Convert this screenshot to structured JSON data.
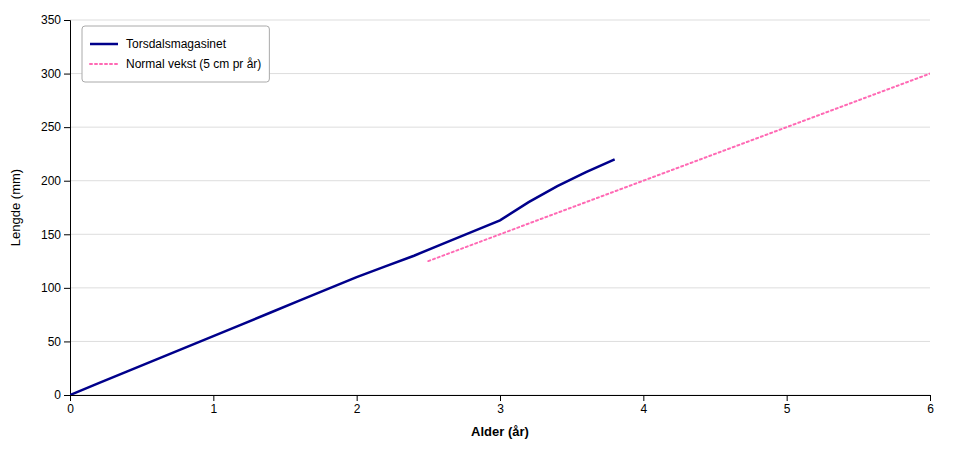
{
  "chart_data": {
    "type": "line",
    "xlabel": "Alder (år)",
    "ylabel": "Lengde (mm)",
    "xlim": [
      0,
      6
    ],
    "ylim": [
      0,
      350
    ],
    "xticks": [
      0,
      1,
      2,
      3,
      4,
      5,
      6
    ],
    "yticks": [
      0,
      50,
      100,
      150,
      200,
      250,
      300,
      350
    ],
    "grid": true,
    "legend": "upper left",
    "series": [
      {
        "name": "Torsdalsmagasinet",
        "color": "#00008B",
        "line_style": "solid",
        "x": [
          0.0,
          0.2,
          0.4,
          0.6,
          0.8,
          1.0,
          1.2,
          1.4,
          1.6,
          1.8,
          2.0,
          2.2,
          2.4,
          2.6,
          2.8,
          3.0,
          3.2,
          3.4,
          3.6,
          3.8
        ],
        "values": [
          0,
          11,
          22,
          33,
          44,
          55,
          66,
          77,
          88,
          99,
          110,
          120,
          130,
          141,
          152,
          163,
          180,
          195,
          208,
          220
        ]
      },
      {
        "name": "Normal vekst (5 cm pr år)",
        "color": "#FF69B4",
        "line_style": "dotted",
        "x": [
          2.5,
          3.0,
          3.5,
          4.0,
          4.5,
          5.0,
          5.5,
          6.0
        ],
        "values": [
          125,
          150,
          175,
          200,
          225,
          250,
          275,
          300
        ]
      }
    ]
  }
}
